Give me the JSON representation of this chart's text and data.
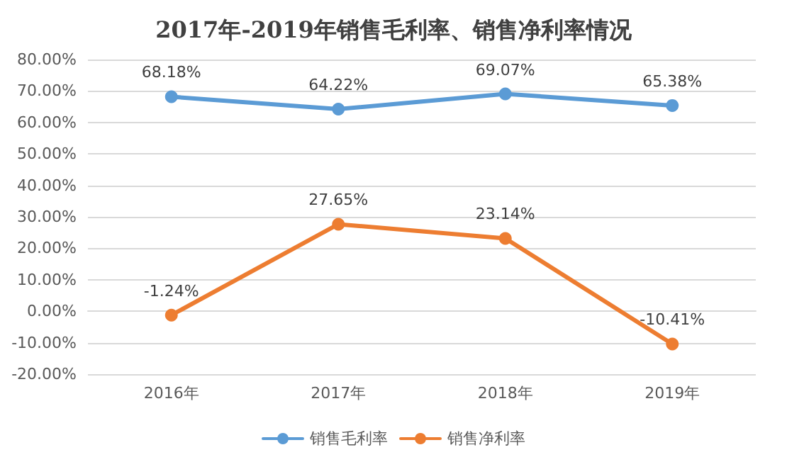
{
  "chart_data": {
    "type": "line",
    "title": "2017年-2019年销售毛利率、销售净利率情况",
    "categories": [
      "2016年",
      "2017年",
      "2018年",
      "2019年"
    ],
    "series": [
      {
        "name": "销售毛利率",
        "color": "#5b9bd5",
        "values": [
          68.18,
          64.22,
          69.07,
          65.38
        ],
        "value_labels": [
          "68.18%",
          "64.22%",
          "69.07%",
          "65.38%"
        ]
      },
      {
        "name": "销售净利率",
        "color": "#ed7d31",
        "values": [
          -1.24,
          27.65,
          23.14,
          -10.41
        ],
        "value_labels": [
          "-1.24%",
          "27.65%",
          "23.14%",
          "-10.41%"
        ]
      }
    ],
    "ylim": [
      -20,
      80
    ],
    "yticks": [
      {
        "value": -20,
        "label": "-20.00%"
      },
      {
        "value": -10,
        "label": "-10.00%"
      },
      {
        "value": 0,
        "label": "0.00%"
      },
      {
        "value": 10,
        "label": "10.00%"
      },
      {
        "value": 20,
        "label": "20.00%"
      },
      {
        "value": 30,
        "label": "30.00%"
      },
      {
        "value": 40,
        "label": "40.00%"
      },
      {
        "value": 50,
        "label": "50.00%"
      },
      {
        "value": 60,
        "label": "60.00%"
      },
      {
        "value": 70,
        "label": "70.00%"
      },
      {
        "value": 80,
        "label": "80.00%"
      }
    ],
    "grid": "y",
    "legend": "bottom",
    "marker": "circle",
    "line_style": "solid"
  }
}
